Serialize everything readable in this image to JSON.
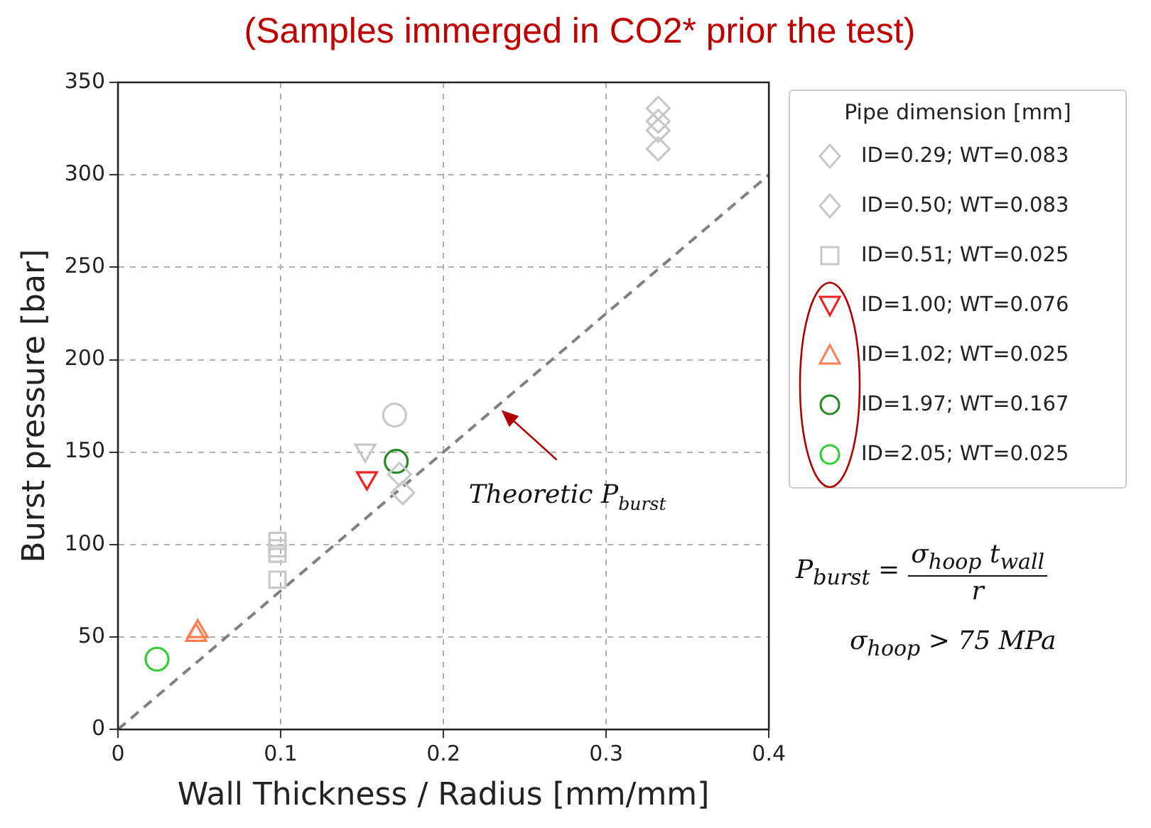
{
  "chart_data": {
    "type": "scatter",
    "title": "(Samples immerged in CO2* prior the test)",
    "xlabel": "Wall Thickness / Radius [mm/mm]",
    "ylabel": "Burst pressure [bar]",
    "legend_title": "Pipe dimension [mm]",
    "xlim": [
      0,
      0.4
    ],
    "xticks": [
      0,
      0.1,
      0.2,
      0.3,
      0.4
    ],
    "ylim": [
      0,
      350
    ],
    "yticks": [
      0,
      50,
      100,
      150,
      200,
      250,
      300,
      350
    ],
    "grid": true,
    "legend": "right",
    "series": [
      {
        "name": "ID=0.29; WT=0.083",
        "color": "#c8c8c8",
        "marker": "diamond",
        "x": [
          0.173,
          0.175
        ],
        "values": [
          138,
          128
        ]
      },
      {
        "name": "ID=0.50; WT=0.083",
        "color": "#c8c8c8",
        "marker": "diamond",
        "x": [
          0.332,
          0.332,
          0.332,
          0.332
        ],
        "values": [
          336,
          329,
          324,
          314
        ]
      },
      {
        "name": "ID=0.51; WT=0.025",
        "color": "#c8c8c8",
        "marker": "square",
        "x": [
          0.098,
          0.098,
          0.098,
          0.098
        ],
        "values": [
          102,
          98,
          95,
          81
        ]
      },
      {
        "name": "ID=1.00; WT=0.076",
        "color": "#ee2222",
        "marker": "triangle_down",
        "x": [
          0.153
        ],
        "values": [
          136
        ]
      },
      {
        "name": "ID=1.02; WT=0.025",
        "color": "#ff7f50",
        "marker": "triangle",
        "x": [
          0.048,
          0.049
        ],
        "values": [
          51,
          53
        ]
      },
      {
        "name": "ID=1.97; WT=0.167",
        "color": "#228b22",
        "marker": "circle",
        "x": [
          0.171
        ],
        "values": [
          145
        ]
      },
      {
        "name": "ID=2.05; WT=0.025",
        "color": "#33cc33",
        "x": [
          0.024
        ],
        "values": [
          38
        ]
      },
      {
        "color": "#c8c8c8",
        "marker": "circle",
        "x": [
          0.17
        ],
        "values": [
          170
        ]
      },
      {
        "color": "#c8c8c8",
        "marker": "triangle_down",
        "x": [
          0.152
        ],
        "values": [
          151
        ]
      },
      {
        "type": "line",
        "color": "#808080",
        "line_style": "dashed",
        "marker": "none",
        "x": [
          0,
          0.4
        ],
        "values": [
          0,
          300
        ]
      }
    ],
    "annotations": [
      {
        "text": "Theoretic P$_{burst}$",
        "x": 0.233,
        "y": 175
      },
      "P$_{burst}$ =",
      "σ$_{hoop}$ t$_{wall}$",
      "r",
      "σ$_{hoop}$ > 75 MPa"
    ]
  }
}
